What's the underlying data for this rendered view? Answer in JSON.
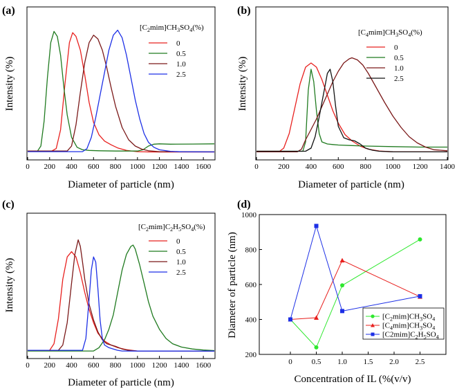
{
  "chart_data": [
    {
      "panel": "(a)",
      "type": "line",
      "xlabel": "Diameter of particle (nm)",
      "ylabel": "Intensity (%)",
      "xlim": [
        0,
        1700
      ],
      "ylim": [
        0,
        100
      ],
      "xticks": [
        0,
        200,
        400,
        600,
        800,
        1000,
        1200,
        1400,
        1600
      ],
      "legend_title": "[C2mim]CH3SO4(%)",
      "legend_title_parts": [
        [
          "[C",
          ""
        ],
        [
          "2",
          "sub"
        ],
        [
          "mim]CH",
          ""
        ],
        [
          "3",
          "sub"
        ],
        [
          "SO",
          ""
        ],
        [
          "4",
          "sub"
        ],
        [
          "(%)",
          ""
        ]
      ],
      "series": [
        {
          "name": "0",
          "color": "#e8201e",
          "x": [
            0,
            220,
            260,
            300,
            340,
            380,
            410,
            440,
            480,
            520,
            560,
            600,
            650,
            700,
            760,
            820,
            900,
            1000,
            1100,
            1200,
            1700
          ],
          "y": [
            1,
            1,
            3,
            18,
            55,
            88,
            96,
            93,
            82,
            62,
            40,
            24,
            14,
            9,
            6,
            3.5,
            1.5,
            0.5,
            0.3,
            0.2,
            0.2
          ]
        },
        {
          "name": "0.5",
          "color": "#1f7a1f",
          "x": [
            0,
            90,
            120,
            150,
            180,
            210,
            240,
            270,
            300,
            330,
            360,
            400,
            450,
            500,
            560,
            650,
            800,
            1000,
            1050,
            1100,
            1150,
            1200,
            1300,
            1500,
            1700
          ],
          "y": [
            1,
            1,
            5,
            25,
            60,
            88,
            97,
            93,
            78,
            52,
            30,
            12,
            4,
            2,
            1.5,
            1.2,
            1,
            1,
            2,
            5,
            6.5,
            6.8,
            6.5,
            6.6,
            6.8
          ]
        },
        {
          "name": "1.0",
          "color": "#7a1818",
          "x": [
            0,
            360,
            400,
            440,
            480,
            520,
            560,
            600,
            640,
            680,
            720,
            760,
            800,
            860,
            920,
            980,
            1040,
            1100,
            1200,
            1700
          ],
          "y": [
            1,
            1,
            5,
            22,
            48,
            72,
            88,
            94,
            91,
            82,
            68,
            52,
            37,
            20,
            10,
            5,
            2.5,
            1.2,
            0.5,
            0.4
          ]
        },
        {
          "name": "2.5",
          "color": "#1c2fe6",
          "x": [
            0,
            500,
            540,
            580,
            620,
            660,
            700,
            740,
            780,
            820,
            860,
            900,
            940,
            980,
            1020,
            1060,
            1100,
            1150,
            1200,
            1300,
            1400,
            1700
          ],
          "y": [
            0.5,
            0.5,
            3,
            12,
            28,
            46,
            64,
            82,
            94,
            98,
            92,
            78,
            60,
            42,
            27,
            15,
            8,
            4,
            2,
            0.8,
            0.4,
            0.3
          ]
        }
      ]
    },
    {
      "panel": "(b)",
      "type": "line",
      "xlabel": "Diameter of particle (nm)",
      "ylabel": "Intensity (%)",
      "xlim": [
        0,
        1400
      ],
      "ylim": [
        0,
        100
      ],
      "xticks": [
        0,
        200,
        400,
        600,
        800,
        1000,
        1200,
        1400
      ],
      "legend_title": "[C4mim]CH3SO4(%)",
      "legend_title_parts": [
        [
          "[C",
          ""
        ],
        [
          "4",
          "sub"
        ],
        [
          "mim]CH",
          ""
        ],
        [
          "3",
          "sub"
        ],
        [
          "SO",
          ""
        ],
        [
          "4",
          "sub"
        ],
        [
          "(%)",
          ""
        ]
      ],
      "series": [
        {
          "name": "0",
          "color": "#e8201e",
          "x": [
            0,
            170,
            200,
            240,
            280,
            320,
            360,
            400,
            440,
            480,
            520,
            560,
            600,
            650,
            700,
            760,
            820,
            900,
            1000,
            1400
          ],
          "y": [
            1,
            1,
            4,
            18,
            42,
            66,
            82,
            86,
            82,
            70,
            55,
            40,
            28,
            17,
            11,
            6,
            3,
            1.2,
            0.5,
            0.4
          ]
        },
        {
          "name": "0.5",
          "color": "#1f7a1f",
          "x": [
            0,
            340,
            360,
            380,
            400,
            420,
            440,
            460,
            480,
            520,
            560,
            600,
            700,
            800,
            1000,
            1200,
            1400
          ],
          "y": [
            1,
            1,
            10,
            60,
            80,
            68,
            40,
            18,
            10,
            8,
            7.5,
            7,
            6.5,
            6,
            5.5,
            5,
            5
          ]
        },
        {
          "name": "1.0",
          "color": "#7a1818",
          "x": [
            0,
            300,
            330,
            360,
            400,
            440,
            480,
            520,
            560,
            600,
            640,
            680,
            700,
            740,
            780,
            820,
            880,
            940,
            1000,
            1060,
            1120,
            1180,
            1240,
            1300,
            1400
          ],
          "y": [
            0.5,
            0.5,
            3,
            12,
            22,
            32,
            44,
            56,
            68,
            78,
            86,
            90,
            91,
            89,
            84,
            76,
            62,
            48,
            35,
            24,
            15,
            9,
            5,
            2.5,
            1.5
          ]
        },
        {
          "name": "2.5",
          "color": "#111111",
          "x": [
            0,
            360,
            400,
            430,
            460,
            480,
            500,
            520,
            540,
            560,
            580,
            600,
            640,
            680,
            720,
            760,
            800,
            850,
            900,
            1000,
            1400
          ],
          "y": [
            1,
            1,
            4,
            15,
            34,
            48,
            62,
            76,
            80,
            68,
            45,
            25,
            14,
            12,
            11,
            8,
            4,
            2,
            1,
            0.5,
            0.4
          ]
        }
      ]
    },
    {
      "panel": "(c)",
      "type": "line",
      "xlabel": "Diameter of particle (nm)",
      "ylabel": "Intensity (%)",
      "xlim": [
        0,
        1700
      ],
      "ylim": [
        0,
        100
      ],
      "xticks": [
        0,
        200,
        400,
        600,
        800,
        1000,
        1200,
        1400,
        1600
      ],
      "legend_title": "[C2mim]C2H5SO4(%)",
      "legend_title_parts": [
        [
          "[C",
          ""
        ],
        [
          "2",
          "sub"
        ],
        [
          "mim]C",
          ""
        ],
        [
          "2",
          "sub"
        ],
        [
          "H",
          ""
        ],
        [
          "5",
          "sub"
        ],
        [
          "SO",
          ""
        ],
        [
          "4",
          "sub"
        ],
        [
          "(%)",
          ""
        ]
      ],
      "series": [
        {
          "name": "0",
          "color": "#e8201e",
          "x": [
            0,
            200,
            240,
            280,
            320,
            360,
            400,
            440,
            480,
            520,
            560,
            600,
            640,
            700,
            760,
            820,
            900,
            1000,
            1700
          ],
          "y": [
            1,
            1,
            6,
            25,
            55,
            72,
            76,
            72,
            60,
            45,
            32,
            22,
            14,
            8,
            5,
            3,
            1.5,
            0.5,
            0.4
          ]
        },
        {
          "name": "0.5",
          "color": "#1f7a1f",
          "x": [
            0,
            600,
            650,
            700,
            740,
            780,
            820,
            860,
            900,
            940,
            960,
            980,
            1020,
            1060,
            1100,
            1140,
            1200,
            1260,
            1320,
            1400,
            1500,
            1600,
            1700
          ],
          "y": [
            0.5,
            0.5,
            3,
            9,
            17,
            28,
            45,
            62,
            74,
            80,
            81,
            78,
            66,
            52,
            38,
            27,
            17,
            10,
            6,
            3.5,
            2,
            1.2,
            0.8
          ]
        },
        {
          "name": "1.0",
          "color": "#7a1818",
          "x": [
            0,
            280,
            320,
            360,
            400,
            430,
            460,
            480,
            500,
            520,
            560,
            600,
            640,
            680,
            720,
            760,
            800,
            860,
            920,
            1000,
            1700
          ],
          "y": [
            1,
            1,
            5,
            22,
            52,
            74,
            85,
            80,
            68,
            55,
            36,
            24,
            15,
            9,
            6,
            5,
            4,
            2,
            1,
            0.5,
            0.4
          ]
        },
        {
          "name": "2.5",
          "color": "#1c2fe6",
          "x": [
            0,
            500,
            530,
            560,
            580,
            600,
            620,
            640,
            660,
            680,
            700,
            740,
            780,
            820,
            860,
            1000,
            1700
          ],
          "y": [
            1,
            1,
            10,
            40,
            62,
            72,
            68,
            48,
            24,
            10,
            5,
            3,
            2,
            1,
            0.5,
            0.4,
            0.4
          ]
        }
      ]
    },
    {
      "panel": "(d)",
      "type": "line",
      "xlabel": "Concentration of IL (%(v/v)",
      "ylabel": "Diameter of particle (nm)",
      "xlim": [
        -0.6,
        3.0
      ],
      "ylim": [
        200,
        1000
      ],
      "xticks": [
        0,
        0.5,
        1.0,
        1.5,
        2.0,
        2.5
      ],
      "xtick_labels": [
        "0",
        "0.5",
        "1.0",
        "1.5",
        "2.0",
        "2.5"
      ],
      "yticks": [
        200,
        400,
        600,
        800,
        1000
      ],
      "series": [
        {
          "name": "[C2mim]CH3SO4",
          "name_parts": [
            [
              "[C",
              ""
            ],
            [
              "2",
              "sub"
            ],
            [
              "mim]CH",
              ""
            ],
            [
              "3",
              "sub"
            ],
            [
              "SO",
              ""
            ],
            [
              "4",
              "sub"
            ]
          ],
          "color": "#2ee82e",
          "marker": "circle",
          "x": [
            0,
            0.5,
            1.0,
            2.5
          ],
          "y": [
            400,
            240,
            595,
            858
          ]
        },
        {
          "name": "[C4mim]CH3SO4",
          "name_parts": [
            [
              "[C",
              ""
            ],
            [
              "4",
              "sub"
            ],
            [
              "mim]CH",
              ""
            ],
            [
              "3",
              "sub"
            ],
            [
              "SO",
              ""
            ],
            [
              "4",
              "sub"
            ]
          ],
          "color": "#e8201e",
          "marker": "triangle",
          "x": [
            0,
            0.5,
            1.0,
            2.5
          ],
          "y": [
            400,
            410,
            738,
            530
          ]
        },
        {
          "name": "[C2mim]C2H5SO4",
          "name_parts": [
            [
              "[C2mim]C",
              ""
            ],
            [
              "2",
              "sub"
            ],
            [
              "H",
              ""
            ],
            [
              "5",
              "sub"
            ],
            [
              "SO",
              ""
            ],
            [
              "4",
              "sub"
            ]
          ],
          "color": "#1c2fe6",
          "marker": "square",
          "x": [
            0,
            0.5,
            1.0,
            2.5
          ],
          "y": [
            400,
            935,
            448,
            533
          ]
        }
      ]
    }
  ]
}
